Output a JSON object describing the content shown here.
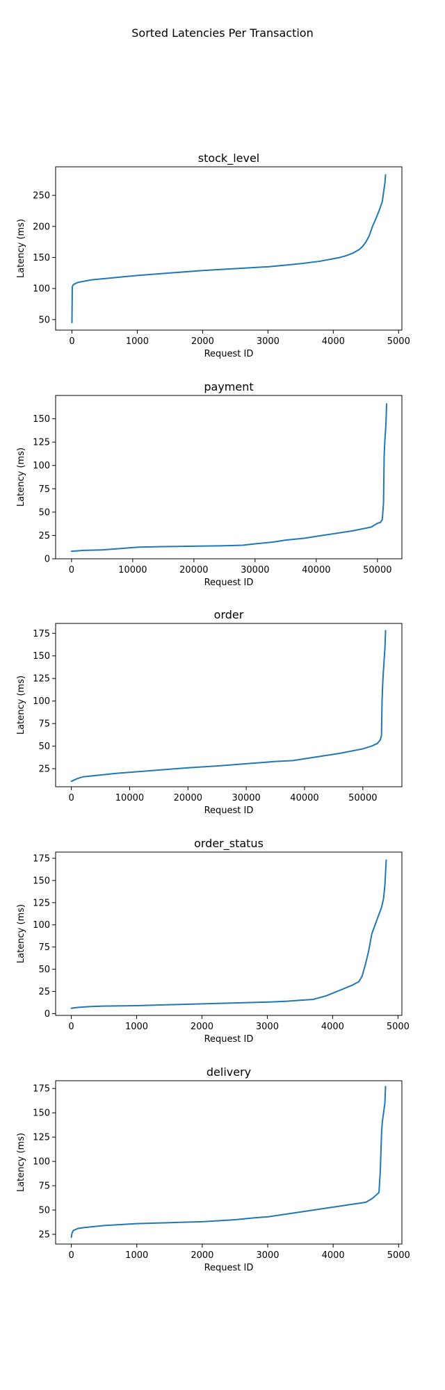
{
  "figure": {
    "suptitle": "Sorted Latencies Per Transaction",
    "line_color": "#1f77b4"
  },
  "chart_data": [
    {
      "type": "line",
      "title": "stock_level",
      "xlabel": "Request ID",
      "ylabel": "Latency (ms)",
      "xlim": [
        -250,
        5050
      ],
      "ylim": [
        33,
        296
      ],
      "xticks": [
        0,
        1000,
        2000,
        3000,
        4000,
        5000
      ],
      "yticks": [
        50,
        100,
        150,
        200,
        250
      ],
      "series": [
        {
          "x": [
            0,
            5,
            20,
            50,
            100,
            200,
            300,
            500,
            800,
            1000,
            1500,
            2000,
            2500,
            3000,
            3200,
            3500,
            3800,
            4000,
            4100,
            4200,
            4300,
            4400,
            4450,
            4500,
            4550,
            4600,
            4650,
            4700,
            4750,
            4770,
            4790,
            4800
          ],
          "y": [
            45,
            103,
            106,
            108,
            110,
            112,
            114,
            116,
            119,
            121,
            125,
            129,
            132,
            135,
            137,
            140,
            144,
            148,
            150,
            153,
            157,
            163,
            168,
            175,
            185,
            200,
            212,
            225,
            240,
            255,
            270,
            283
          ]
        }
      ]
    },
    {
      "type": "line",
      "title": "payment",
      "xlabel": "Request ID",
      "ylabel": "Latency (ms)",
      "xlim": [
        -2600,
        54000
      ],
      "ylim": [
        0,
        175
      ],
      "xticks": [
        0,
        10000,
        20000,
        30000,
        40000,
        50000
      ],
      "yticks": [
        0,
        25,
        50,
        75,
        100,
        125,
        150
      ],
      "series": [
        {
          "x": [
            0,
            2000,
            5000,
            8000,
            10000,
            11000,
            15000,
            20000,
            25000,
            28000,
            30000,
            33000,
            35000,
            38000,
            40000,
            43000,
            46000,
            49000,
            49500,
            50000,
            50500,
            50800,
            51000,
            51100,
            51200,
            51300,
            51400,
            51500
          ],
          "y": [
            8,
            9,
            9.5,
            11,
            12,
            12.5,
            13,
            13.5,
            14,
            14.5,
            16,
            18,
            20,
            22,
            24,
            27,
            30,
            34,
            36,
            38,
            39,
            42,
            60,
            110,
            125,
            135,
            145,
            166
          ]
        }
      ]
    },
    {
      "type": "line",
      "title": "order",
      "xlabel": "Request ID",
      "ylabel": "Latency (ms)",
      "xlim": [
        -2700,
        56700
      ],
      "ylim": [
        5,
        186
      ],
      "xticks": [
        0,
        10000,
        20000,
        30000,
        40000,
        50000
      ],
      "yticks": [
        25,
        50,
        75,
        100,
        125,
        150,
        175
      ],
      "series": [
        {
          "x": [
            0,
            1000,
            2000,
            5000,
            8000,
            10000,
            15000,
            20000,
            25000,
            30000,
            35000,
            38000,
            40000,
            43000,
            46000,
            48000,
            50000,
            51500,
            52500,
            53000,
            53200,
            53300,
            53400,
            53500,
            53600,
            53700,
            53800,
            53900
          ],
          "y": [
            11,
            14,
            16,
            18,
            20,
            21,
            23.5,
            26,
            28,
            30.5,
            33,
            34,
            36,
            39,
            42,
            44.5,
            47,
            50,
            53,
            57,
            62,
            100,
            118,
            130,
            140,
            150,
            160,
            178
          ]
        }
      ]
    },
    {
      "type": "line",
      "title": "order_status",
      "xlabel": "Request ID",
      "ylabel": "Latency (ms)",
      "xlim": [
        -240,
        5060
      ],
      "ylim": [
        -2,
        182
      ],
      "xticks": [
        0,
        1000,
        2000,
        3000,
        4000,
        5000
      ],
      "yticks": [
        0,
        25,
        50,
        75,
        100,
        125,
        150,
        175
      ],
      "series": [
        {
          "x": [
            0,
            100,
            300,
            500,
            1000,
            1500,
            2000,
            2500,
            3000,
            3300,
            3500,
            3700,
            3800,
            3900,
            4000,
            4100,
            4200,
            4300,
            4400,
            4450,
            4500,
            4550,
            4600,
            4650,
            4700,
            4750,
            4780,
            4800,
            4820
          ],
          "y": [
            6,
            7,
            8,
            8.5,
            9,
            10,
            11,
            12,
            13,
            14,
            15,
            16,
            18,
            20,
            23,
            26,
            29,
            32,
            36,
            42,
            55,
            70,
            90,
            100,
            110,
            120,
            130,
            145,
            173
          ]
        }
      ]
    },
    {
      "type": "line",
      "title": "delivery",
      "xlabel": "Request ID",
      "ylabel": "Latency (ms)",
      "xlim": [
        -240,
        5050
      ],
      "ylim": [
        15,
        183
      ],
      "xticks": [
        0,
        1000,
        2000,
        3000,
        4000,
        5000
      ],
      "yticks": [
        25,
        50,
        75,
        100,
        125,
        150,
        175
      ],
      "series": [
        {
          "x": [
            0,
            10,
            30,
            100,
            200,
            500,
            1000,
            1500,
            2000,
            2500,
            2800,
            3000,
            3500,
            4000,
            4300,
            4500,
            4600,
            4650,
            4700,
            4720,
            4740,
            4750,
            4770,
            4790,
            4800
          ],
          "y": [
            22,
            26,
            29,
            31,
            32,
            34,
            36,
            37,
            38,
            40,
            42,
            43,
            48,
            53,
            56,
            58,
            62,
            65,
            68,
            90,
            130,
            140,
            150,
            160,
            177
          ]
        }
      ]
    }
  ]
}
